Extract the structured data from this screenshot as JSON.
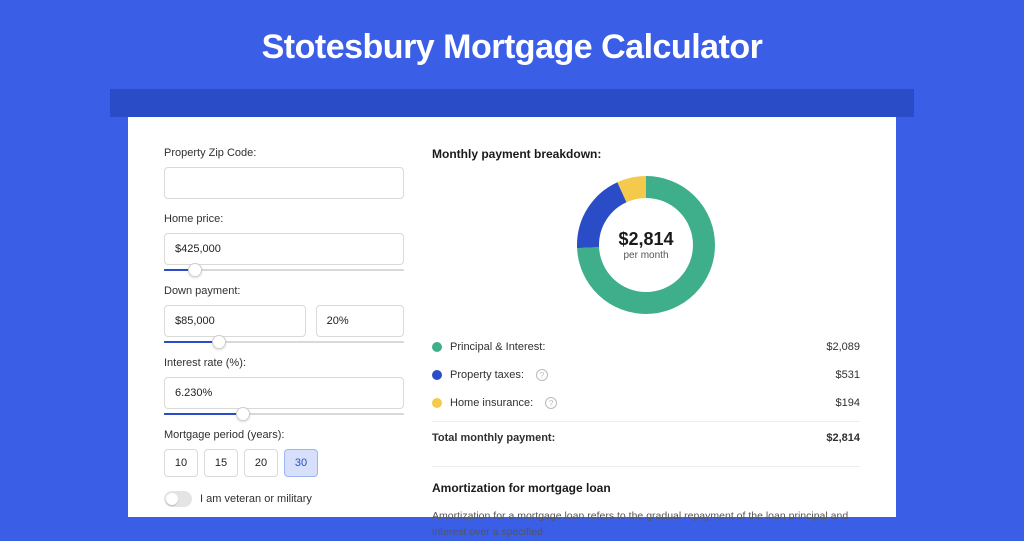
{
  "page": {
    "title": "Stotesbury Mortgage Calculator",
    "background_color": "#3a5ee6",
    "band_color": "#2a4dc7",
    "card_bg": "#ffffff"
  },
  "form": {
    "zip": {
      "label": "Property Zip Code:",
      "value": ""
    },
    "home_price": {
      "label": "Home price:",
      "value": "$425,000",
      "slider_pct": 10
    },
    "down_payment": {
      "label": "Down payment:",
      "amount": "$85,000",
      "percent": "20%",
      "slider_pct": 20
    },
    "interest_rate": {
      "label": "Interest rate (%):",
      "value": "6.230%",
      "slider_pct": 30
    },
    "mortgage_period": {
      "label": "Mortgage period (years):",
      "options": [
        "10",
        "15",
        "20",
        "30"
      ],
      "selected": "30"
    },
    "veteran": {
      "label": "I am veteran or military",
      "on": false
    }
  },
  "breakdown": {
    "title": "Monthly payment breakdown:",
    "center_amount": "$2,814",
    "center_sub": "per month",
    "items": [
      {
        "label": "Principal & Interest:",
        "value": "$2,089",
        "color": "#3fae8b",
        "pct": 74.2,
        "has_info": false
      },
      {
        "label": "Property taxes:",
        "value": "$531",
        "color": "#2a4dc7",
        "pct": 18.9,
        "has_info": true
      },
      {
        "label": "Home insurance:",
        "value": "$194",
        "color": "#f4c94c",
        "pct": 6.9,
        "has_info": true
      }
    ],
    "total": {
      "label": "Total monthly payment:",
      "value": "$2,814"
    }
  },
  "amortization": {
    "title": "Amortization for mortgage loan",
    "text": "Amortization for a mortgage loan refers to the gradual repayment of the loan principal and interest over a specified"
  },
  "chart_style": {
    "type": "donut",
    "radius": 58,
    "stroke_width": 22,
    "background": "#ffffff"
  }
}
